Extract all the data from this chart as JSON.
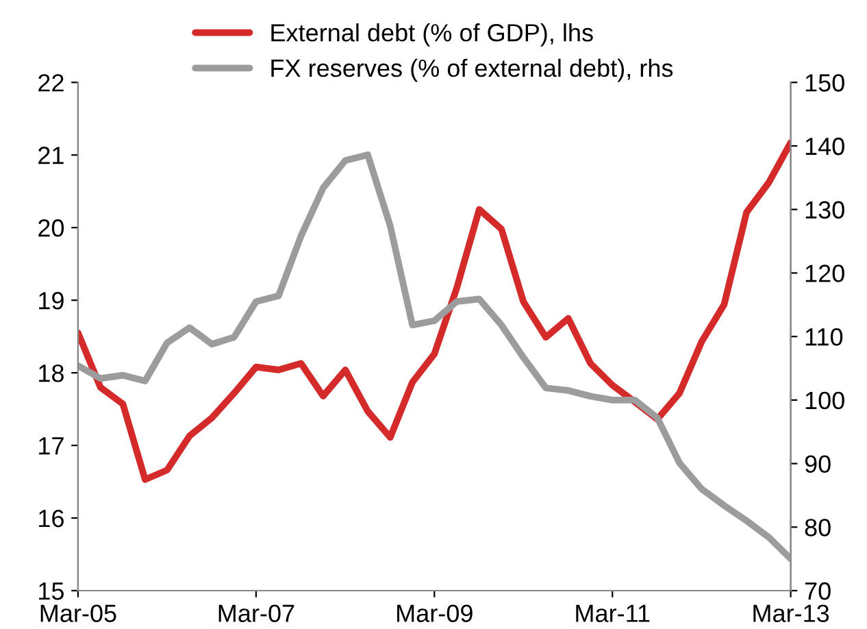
{
  "chart_data": {
    "type": "line",
    "x": [
      "2005-03",
      "2005-06",
      "2005-09",
      "2005-12",
      "2006-03",
      "2006-06",
      "2006-09",
      "2006-12",
      "2007-03",
      "2007-06",
      "2007-09",
      "2007-12",
      "2008-03",
      "2008-06",
      "2008-09",
      "2008-12",
      "2009-03",
      "2009-06",
      "2009-09",
      "2009-12",
      "2010-03",
      "2010-06",
      "2010-09",
      "2010-12",
      "2011-03",
      "2011-06",
      "2011-09",
      "2011-12",
      "2012-03",
      "2012-06",
      "2012-09",
      "2012-12",
      "2013-03"
    ],
    "series": [
      {
        "name": "External debt (% of GDP), lhs",
        "color": "#d42a2a",
        "values": [
          18.55,
          17.8,
          17.57,
          16.53,
          16.66,
          17.13,
          17.38,
          17.72,
          18.08,
          18.04,
          18.13,
          17.68,
          18.04,
          17.47,
          17.11,
          17.87,
          18.26,
          19.17,
          20.25,
          19.98,
          18.98,
          18.49,
          18.75,
          18.13,
          17.83,
          17.6,
          17.36,
          17.72,
          18.43,
          18.94,
          20.21,
          20.62,
          21.17
        ]
      },
      {
        "name": "FX reserves (% of external debt), rhs",
        "color": "#9c9c9c",
        "axis": "y2",
        "values": [
          105.4,
          103.4,
          103.9,
          103.0,
          109.0,
          111.4,
          108.8,
          109.9,
          115.5,
          116.4,
          125.8,
          133.4,
          137.7,
          138.6,
          127.4,
          111.8,
          112.5,
          115.5,
          115.9,
          111.8,
          106.7,
          101.9,
          101.5,
          100.6,
          100.0,
          100.0,
          97.2,
          90.1,
          86.0,
          83.4,
          81.0,
          78.4,
          75.0
        ]
      }
    ],
    "xlim": [
      "2005-03",
      "2013-03"
    ],
    "xticks": [
      {
        "value": "2005-03",
        "label": "Mar-05"
      },
      {
        "value": "2007-03",
        "label": "Mar-07"
      },
      {
        "value": "2009-03",
        "label": "Mar-09"
      },
      {
        "value": "2011-03",
        "label": "Mar-11"
      },
      {
        "value": "2013-03",
        "label": "Mar-13"
      }
    ],
    "ylim": [
      15,
      22
    ],
    "yticks": [
      15,
      16,
      17,
      18,
      19,
      20,
      21,
      22
    ],
    "y2lim": [
      70,
      150
    ],
    "y2ticks": [
      70,
      80,
      90,
      100,
      110,
      120,
      130,
      140,
      150
    ],
    "legend": "top",
    "grid": false,
    "marker": "none",
    "line_style": "solid"
  }
}
